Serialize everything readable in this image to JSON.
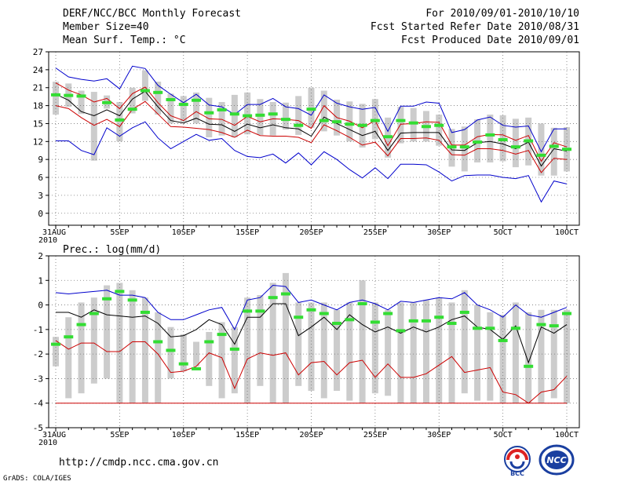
{
  "header": {
    "left": [
      "DERF/NCC/BCC Monthly Forecast",
      "Member Size=40",
      "Mean Surf. Temp.: °C"
    ],
    "right": [
      "For 2010/09/01-2010/10/10",
      "Fcst Started Refer Date 2010/08/31",
      "Fcst Produced Date 2010/09/01"
    ]
  },
  "footer": {
    "url": "http://cmdp.ncc.cma.gov.cn",
    "grads": "GrADS: COLA/IGES",
    "logo_bcc": "BCC",
    "logo_ncc": "NCC"
  },
  "chart_data": [
    {
      "type": "line",
      "title": "Mean Surf. Temp.: °C",
      "ylabel": "°C",
      "ylim": [
        -2,
        27
      ],
      "yticks": [
        0,
        3,
        6,
        9,
        12,
        15,
        18,
        21,
        24,
        27
      ],
      "xlim": [
        0,
        40
      ],
      "xticks": [
        0,
        5,
        10,
        15,
        20,
        25,
        30,
        35,
        40
      ],
      "xtick_labels": [
        "31AUG",
        "5SEP",
        "10SEP",
        "15SEP",
        "20SEP",
        "25SEP",
        "30SEP",
        "5OCT",
        "10OCT"
      ],
      "xsublabel": "2010",
      "grid": true,
      "series": [
        {
          "name": "ensemble max",
          "color": "#0000cc",
          "values": [
            24.3,
            22.8,
            22.4,
            22.1,
            22.5,
            20.8,
            24.6,
            24.2,
            21.4,
            19.9,
            18.5,
            19.9,
            18.1,
            17.8,
            16.5,
            18.2,
            18.2,
            19.2,
            17.8,
            17.5,
            16.4,
            19.8,
            18.4,
            17.8,
            17.4,
            17.7,
            13.7,
            17.9,
            17.9,
            18.6,
            18.4,
            13.5,
            14.0,
            15.6,
            16.1,
            14.7,
            14.4,
            14.6,
            10.3,
            14.1,
            14.1
          ]
        },
        {
          "name": "upper",
          "color": "#cc0000",
          "values": [
            21.8,
            20.6,
            19.8,
            18.6,
            19.2,
            17.5,
            20.0,
            21.1,
            18.5,
            16.3,
            15.5,
            17.0,
            15.8,
            15.7,
            14.7,
            16.2,
            15.3,
            15.8,
            15.7,
            15.5,
            14.2,
            18.0,
            16.0,
            15.4,
            14.3,
            15.5,
            11.3,
            14.9,
            15.0,
            15.3,
            15.2,
            11.4,
            11.4,
            12.8,
            13.2,
            13.1,
            12.2,
            13.0,
            8.7,
            11.8,
            11.1
          ]
        },
        {
          "name": "ensemble mean",
          "color": "#000000",
          "values": [
            19.9,
            18.9,
            17.0,
            16.3,
            17.3,
            16.3,
            19.1,
            20.4,
            17.8,
            15.5,
            15.1,
            15.9,
            14.9,
            14.8,
            13.7,
            14.9,
            14.3,
            14.8,
            14.3,
            14.1,
            12.9,
            16.1,
            15.0,
            14.0,
            13.0,
            13.7,
            10.5,
            13.4,
            13.5,
            13.5,
            13.5,
            10.6,
            10.5,
            11.8,
            12.0,
            11.6,
            10.8,
            11.9,
            7.9,
            10.8,
            10.4
          ]
        },
        {
          "name": "lower",
          "color": "#cc0000",
          "values": [
            18.0,
            17.5,
            16.0,
            14.7,
            15.7,
            14.5,
            17.4,
            18.7,
            16.6,
            14.5,
            14.4,
            14.2,
            14.0,
            13.5,
            12.7,
            13.9,
            13.0,
            12.9,
            12.9,
            12.7,
            11.8,
            14.8,
            13.8,
            12.7,
            11.4,
            11.9,
            9.6,
            12.5,
            12.5,
            12.6,
            12.2,
            9.8,
            9.7,
            10.8,
            10.8,
            10.5,
            9.9,
            10.5,
            6.8,
            9.2,
            9.0
          ]
        },
        {
          "name": "ensemble min",
          "color": "#0000cc",
          "values": [
            12.1,
            12.1,
            10.5,
            9.8,
            14.3,
            12.9,
            14.3,
            15.3,
            12.6,
            10.8,
            12.0,
            13.2,
            12.2,
            12.5,
            10.5,
            9.5,
            9.3,
            9.9,
            8.4,
            10.1,
            8.1,
            10.3,
            9.0,
            7.3,
            5.9,
            7.6,
            5.8,
            8.2,
            8.2,
            8.1,
            6.9,
            5.4,
            6.3,
            6.4,
            6.4,
            6.0,
            5.8,
            6.3,
            1.9,
            5.4,
            4.9
          ]
        },
        {
          "name": "observation",
          "color": "#33dd33",
          "values": [
            19.8,
            19.7,
            19.6,
            null,
            18.5,
            15.6,
            17.4,
            20.5,
            20.2,
            19.0,
            18.2,
            18.9,
            16.8,
            17.3,
            16.6,
            16.3,
            16.4,
            16.6,
            15.7,
            14.7,
            17.4,
            15.5,
            15.3,
            14.9,
            14.7,
            15.5,
            12.8,
            15.5,
            15.1,
            14.5,
            14.7,
            11.1,
            11.1,
            11.9,
            13.1,
            12.3,
            11.1,
            12.1,
            9.7,
            11.2,
            10.7
          ]
        }
      ],
      "boxes": {
        "name": "climatology range",
        "color": "#cccccc",
        "low": [
          16.5,
          17.8,
          16.6,
          8.8,
          17.5,
          12.0,
          16.7,
          18.8,
          16.5,
          15.0,
          15.3,
          15.0,
          12.7,
          13.0,
          12.7,
          13.2,
          13.1,
          13.0,
          14.0,
          13.1,
          14.3,
          13.7,
          13.0,
          12.0,
          11.0,
          12.4,
          9.3,
          11.7,
          12.0,
          12.0,
          11.3,
          7.8,
          7.0,
          8.5,
          8.5,
          8.7,
          7.7,
          8.0,
          6.3,
          6.3,
          7.0
        ],
        "high": [
          22.0,
          21.7,
          20.5,
          20.3,
          19.7,
          18.6,
          21.0,
          23.9,
          22.0,
          20.0,
          19.6,
          20.2,
          19.3,
          18.6,
          19.8,
          20.2,
          19.1,
          18.6,
          18.5,
          19.6,
          21.0,
          20.5,
          19.0,
          18.7,
          18.3,
          19.1,
          16.0,
          17.8,
          17.6,
          17.1,
          16.5,
          14.1,
          14.5,
          15.7,
          16.5,
          16.4,
          15.8,
          16.0,
          15.0,
          14.3,
          14.4
        ]
      }
    },
    {
      "type": "line",
      "title": "Prec.: log(mm/d)",
      "ylabel": "log(mm/d)",
      "ylim": [
        -5,
        2
      ],
      "yticks": [
        -5,
        -4,
        -3,
        -2,
        -1,
        0,
        1,
        2
      ],
      "xlim": [
        0,
        40
      ],
      "xticks": [
        0,
        5,
        10,
        15,
        20,
        25,
        30,
        35,
        40
      ],
      "xtick_labels": [
        "31AUG",
        "5SEP",
        "10SEP",
        "15SEP",
        "20SEP",
        "25SEP",
        "30SEP",
        "5OCT",
        "10OCT"
      ],
      "xsublabel": "2010",
      "grid": true,
      "series": [
        {
          "name": "ensemble max",
          "color": "#0000cc",
          "values": [
            0.5,
            0.45,
            0.5,
            0.55,
            0.6,
            0.4,
            0.4,
            0.3,
            -0.3,
            -0.6,
            -0.6,
            -0.4,
            -0.2,
            -0.1,
            -1.0,
            0.2,
            0.3,
            0.8,
            0.75,
            0.1,
            0.2,
            0.0,
            -0.2,
            0.1,
            0.2,
            0.05,
            -0.2,
            0.15,
            0.1,
            0.2,
            0.3,
            0.25,
            0.5,
            0.0,
            -0.2,
            -0.5,
            0.0,
            -0.4,
            -0.5,
            -0.3,
            -0.1
          ]
        },
        {
          "name": "ensemble mean",
          "color": "#000000",
          "values": [
            -0.3,
            -0.3,
            -0.5,
            -0.2,
            -0.4,
            -0.45,
            -0.5,
            -0.45,
            -0.75,
            -1.3,
            -1.25,
            -1.0,
            -0.6,
            -0.8,
            -1.6,
            -0.5,
            -0.5,
            0.05,
            0.05,
            -1.25,
            -0.9,
            -0.5,
            -1.0,
            -0.4,
            -0.8,
            -1.1,
            -0.9,
            -1.15,
            -0.9,
            -1.1,
            -0.9,
            -0.6,
            -0.45,
            -0.9,
            -1.0,
            -1.4,
            -0.85,
            -2.35,
            -0.9,
            -1.15,
            -0.8
          ]
        },
        {
          "name": "ensemble lower",
          "color": "#cc0000",
          "values": [
            -1.45,
            -1.8,
            -1.55,
            -1.55,
            -1.9,
            -1.9,
            -1.5,
            -1.5,
            -2.0,
            -2.75,
            -2.7,
            -2.5,
            -1.95,
            -2.15,
            -3.4,
            -2.2,
            -1.95,
            -2.05,
            -1.95,
            -2.85,
            -2.35,
            -2.3,
            -2.85,
            -2.35,
            -2.25,
            -2.95,
            -2.4,
            -2.95,
            -2.95,
            -2.8,
            -2.45,
            -2.1,
            -2.75,
            -2.65,
            -2.55,
            -3.55,
            -3.65,
            -4.0,
            -3.55,
            -3.45,
            -2.9
          ]
        },
        {
          "name": "ensemble min",
          "color": "#cc0000",
          "values": [
            -4,
            -4,
            -4,
            -4,
            -4,
            -4,
            -4,
            -4,
            -4,
            -4,
            -4,
            -4,
            -4,
            -4,
            -4,
            -4,
            -4,
            -4,
            -4,
            -4,
            -4,
            -4,
            -4,
            -4,
            -4,
            -4,
            -4,
            -4,
            -4,
            -4,
            -4,
            -4,
            -4,
            -4,
            -4,
            -4,
            -4,
            -4,
            -4,
            -4,
            -4
          ]
        },
        {
          "name": "observation",
          "color": "#33dd33",
          "values": [
            -1.6,
            -1.3,
            -0.8,
            -0.35,
            0.25,
            0.55,
            0.2,
            -0.3,
            -1.5,
            -1.85,
            -2.4,
            -2.6,
            -1.5,
            -1.2,
            -1.8,
            -0.25,
            -0.25,
            0.3,
            0.45,
            -0.5,
            -0.2,
            -0.35,
            -0.75,
            -0.6,
            0.05,
            -0.7,
            -0.35,
            -1.05,
            -0.65,
            -0.65,
            -0.5,
            -0.75,
            -0.3,
            -0.95,
            -0.95,
            -1.45,
            -0.95,
            -2.5,
            -0.8,
            -0.85,
            -0.35
          ]
        }
      ],
      "boxes": {
        "name": "climatology range",
        "color": "#cccccc",
        "low": [
          -2.5,
          -3.8,
          -3.6,
          -3.2,
          -3.0,
          -4.0,
          -4.0,
          -4.0,
          -4.0,
          -3.0,
          -2.7,
          -2.5,
          -3.3,
          -3.8,
          -3.6,
          -4.0,
          -3.3,
          -4.0,
          -4.0,
          -3.3,
          -3.5,
          -3.8,
          -3.5,
          -3.9,
          -4.0,
          -3.6,
          -3.7,
          -4.0,
          -4.0,
          -4.0,
          -4.0,
          -4.0,
          -3.6,
          -3.9,
          -3.9,
          -4.0,
          -4.0,
          -4.0,
          -4.0,
          -3.8,
          -4.0
        ],
        "high": [
          -1.3,
          -0.5,
          0.1,
          0.3,
          0.8,
          0.9,
          0.6,
          0.3,
          -0.3,
          -0.9,
          -1.2,
          -1.5,
          -1.1,
          -0.7,
          -0.9,
          0.3,
          0.4,
          0.9,
          1.3,
          0.1,
          0.1,
          0.1,
          -0.2,
          0.1,
          1.0,
          0.1,
          -0.2,
          0.1,
          0.1,
          0.2,
          0.3,
          0.1,
          0.6,
          0.0,
          -0.3,
          -0.4,
          0.1,
          -0.3,
          -0.2,
          -0.2,
          -0.2
        ]
      }
    }
  ]
}
